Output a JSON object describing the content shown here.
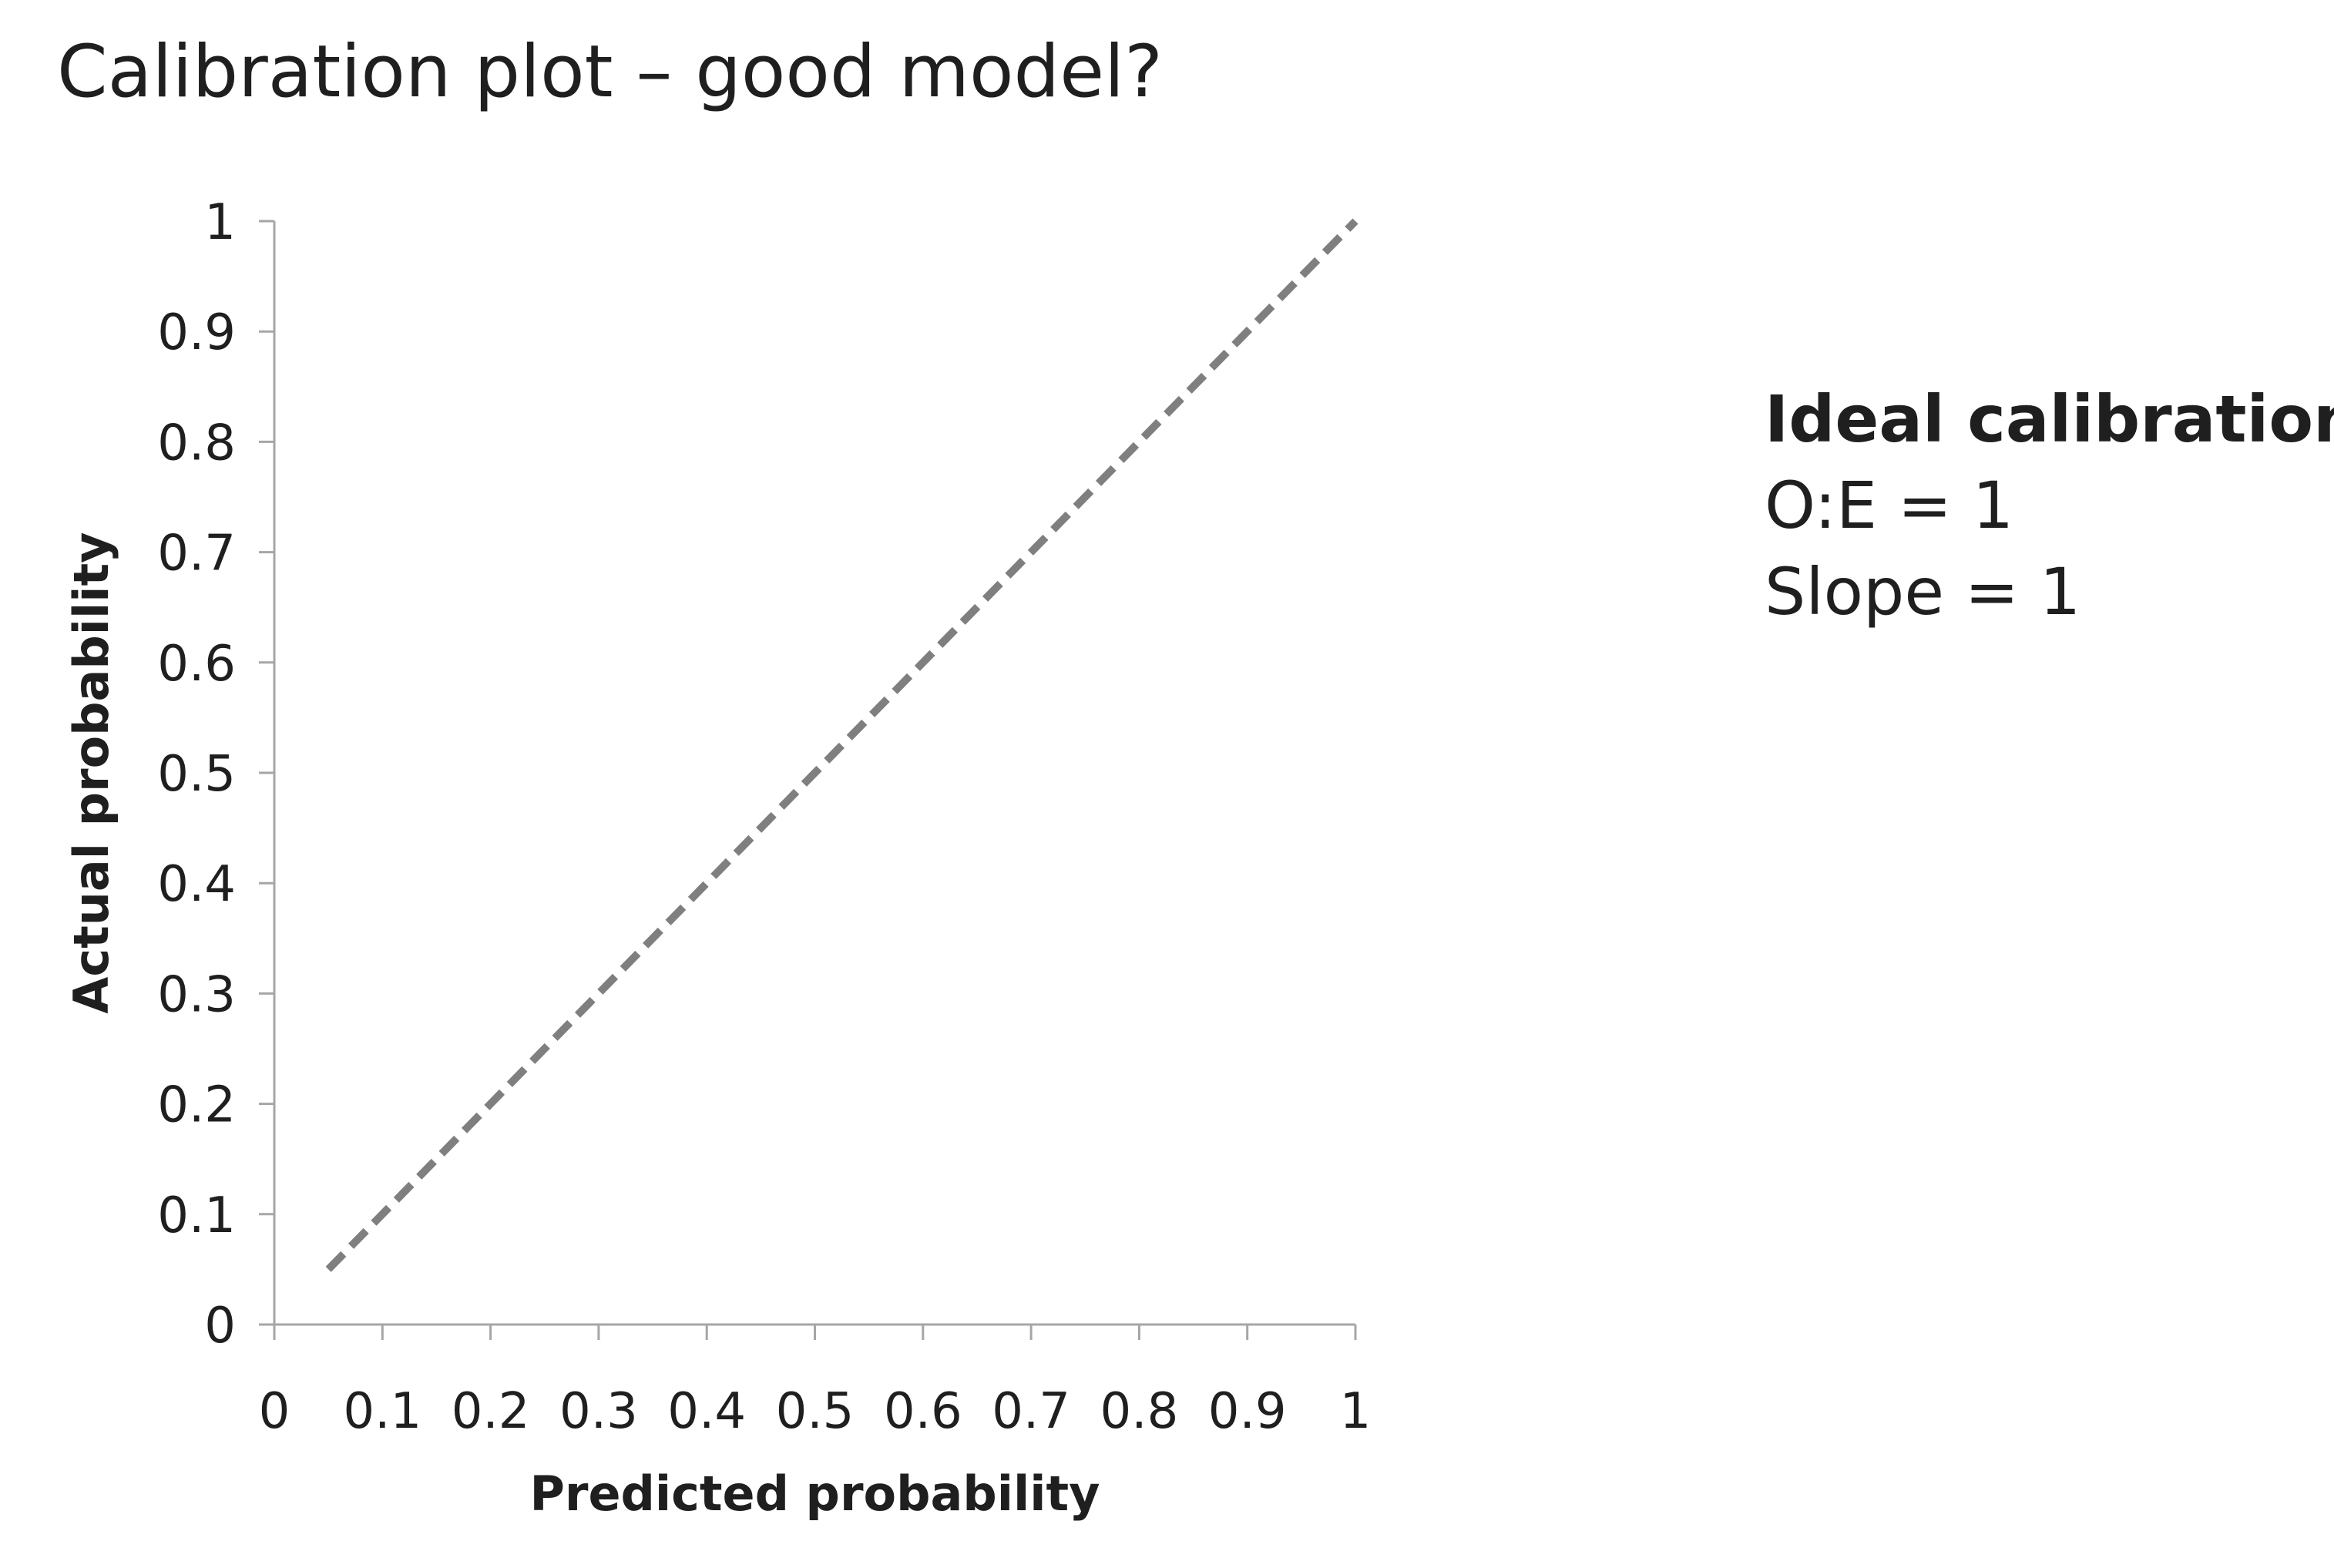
{
  "title": "Calibration plot – good model?",
  "annotation": {
    "heading": "Ideal calibration",
    "lines": [
      "O:E = 1",
      "Slope = 1"
    ]
  },
  "chart_data": {
    "type": "line",
    "xlabel": "Predicted probability",
    "ylabel": "Actual probability",
    "xlim": [
      0,
      1
    ],
    "ylim": [
      0,
      1
    ],
    "x_ticks": [
      "0",
      "0.1",
      "0.2",
      "0.3",
      "0.4",
      "0.5",
      "0.6",
      "0.7",
      "0.8",
      "0.9",
      "1"
    ],
    "y_ticks": [
      "0",
      "0.1",
      "0.2",
      "0.3",
      "0.4",
      "0.5",
      "0.6",
      "0.7",
      "0.8",
      "0.9",
      "1"
    ],
    "grid": false,
    "series": [
      {
        "style": "dashed",
        "color": "#7f7f7f",
        "x": [
          0.05,
          1.0
        ],
        "y": [
          0.05,
          1.0
        ]
      }
    ]
  }
}
